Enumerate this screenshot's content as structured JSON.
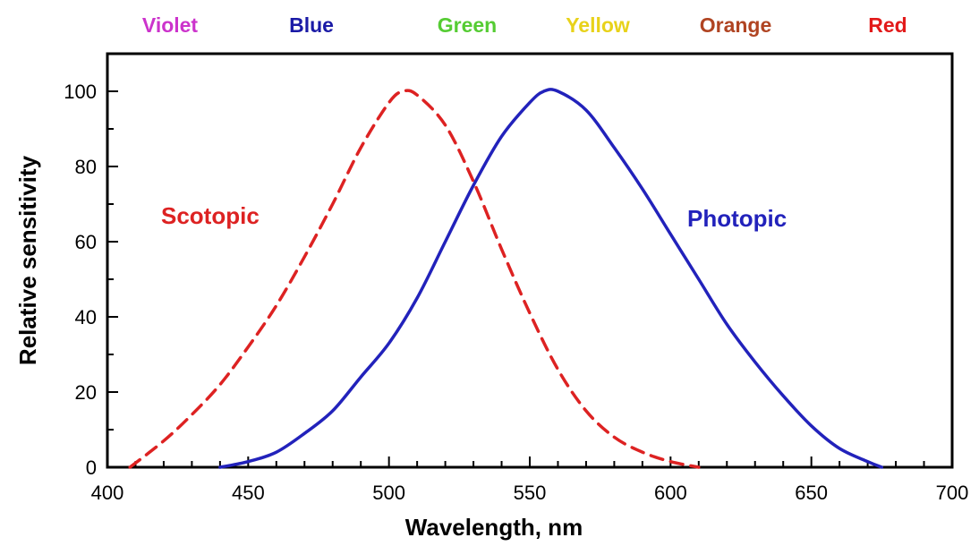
{
  "chart_data": {
    "type": "line",
    "xlabel": "Wavelength, nm",
    "ylabel": "Relative sensitivity",
    "xlim": [
      400,
      700
    ],
    "ylim": [
      0,
      110
    ],
    "x_ticks": [
      400,
      450,
      500,
      550,
      600,
      650,
      700
    ],
    "y_ticks": [
      0,
      20,
      40,
      60,
      80,
      100
    ],
    "grid": false,
    "color_bands": [
      {
        "label": "Violet",
        "color": "#cc33cc"
      },
      {
        "label": "Blue",
        "color": "#1a1aa6"
      },
      {
        "label": "Green",
        "color": "#55cc33"
      },
      {
        "label": "Yellow",
        "color": "#e8d21a"
      },
      {
        "label": "Orange",
        "color": "#b04422"
      },
      {
        "label": "Red",
        "color": "#e21a1a"
      }
    ],
    "series": [
      {
        "name": "Scotopic",
        "color": "#dd2222",
        "style": "dashed",
        "x": [
          408,
          420,
          430,
          440,
          450,
          460,
          470,
          480,
          490,
          500,
          505,
          510,
          520,
          530,
          540,
          550,
          560,
          570,
          580,
          590,
          600,
          610
        ],
        "y": [
          0,
          7,
          14,
          22,
          32,
          43,
          56,
          70,
          85,
          97,
          100,
          99,
          91,
          76,
          58,
          41,
          26,
          15,
          8,
          4,
          1.5,
          0
        ]
      },
      {
        "name": "Photopic",
        "color": "#2222bb",
        "style": "solid",
        "x": [
          440,
          450,
          460,
          470,
          480,
          490,
          500,
          510,
          520,
          530,
          540,
          550,
          555,
          560,
          570,
          580,
          590,
          600,
          610,
          620,
          630,
          640,
          650,
          660,
          670,
          675
        ],
        "y": [
          0,
          1.5,
          4,
          9,
          15,
          24,
          33,
          45,
          60,
          75,
          88,
          97,
          100,
          100,
          95,
          85,
          74,
          62,
          50,
          38,
          28,
          19,
          11,
          5,
          1.5,
          0
        ]
      }
    ]
  }
}
